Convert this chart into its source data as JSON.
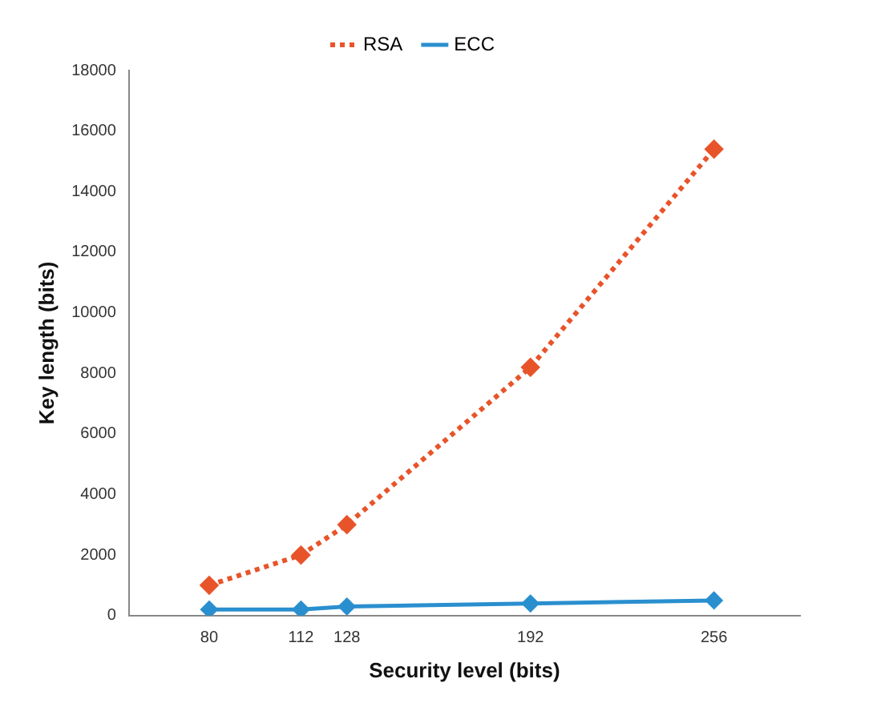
{
  "chart_data": {
    "type": "line",
    "xlabel": "Security level (bits)",
    "ylabel": "Key length (bits)",
    "x": [
      80,
      112,
      128,
      192,
      256
    ],
    "series": [
      {
        "name": "RSA",
        "color": "#e8542a",
        "values": [
          1000,
          2000,
          3000,
          8200,
          15400
        ],
        "line_style": "dotted"
      },
      {
        "name": "ECC",
        "color": "#2a8fcf",
        "values": [
          200,
          200,
          300,
          400,
          500
        ],
        "line_style": "solid"
      }
    ],
    "xlim": [
      52,
      286
    ],
    "xticks": [
      80,
      112,
      128,
      192,
      256
    ],
    "ylim": [
      0,
      18000
    ],
    "yticks": [
      0,
      2000,
      4000,
      6000,
      8000,
      10000,
      12000,
      14000,
      16000,
      18000
    ],
    "grid": false,
    "legend": "top",
    "marker": "diamond"
  }
}
